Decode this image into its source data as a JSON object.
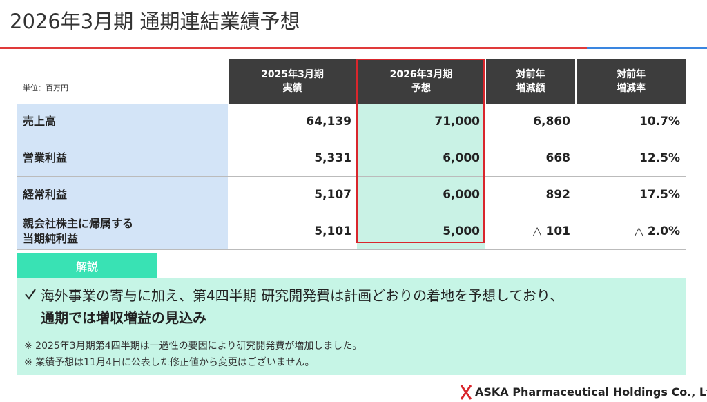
{
  "header": {
    "title": "2026年3月期 通期連結業績予想"
  },
  "table": {
    "unit_label": "単位：百万円",
    "columns": [
      [
        "2025年3月期",
        "実績"
      ],
      [
        "2026年3月期",
        "予想"
      ],
      [
        "対前年",
        "増減額"
      ],
      [
        "対前年",
        "増減率"
      ]
    ],
    "rows": [
      {
        "label": [
          "売上高"
        ],
        "cells": [
          "64,139",
          "71,000",
          "6,860",
          "10.7%"
        ]
      },
      {
        "label": [
          "営業利益"
        ],
        "cells": [
          "5,331",
          "6,000",
          "668",
          "12.5%"
        ]
      },
      {
        "label": [
          "経常利益"
        ],
        "cells": [
          "5,107",
          "6,000",
          "892",
          "17.5%"
        ]
      },
      {
        "label": [
          "親会社株主に帰属する",
          "当期純利益"
        ],
        "cells": [
          "5,101",
          "5,000",
          "△ 101",
          "△ 2.0%"
        ]
      }
    ]
  },
  "commentary": {
    "tab": "解説",
    "point_line1": "海外事業の寄与に加え、第4四半期 研究開発費は計画どおりの着地を予想しており、",
    "point_line2": "通期では増収増益の見込み",
    "notes": [
      "※ 2025年3月期第4四半期は一過性の要因により研究開発費が増加しました。",
      "※ 業績予想は11月4日に公表した修正値から変更はございません。"
    ]
  },
  "footer": {
    "company": "ASKA Pharmaceutical Holdings Co., Ltd."
  }
}
